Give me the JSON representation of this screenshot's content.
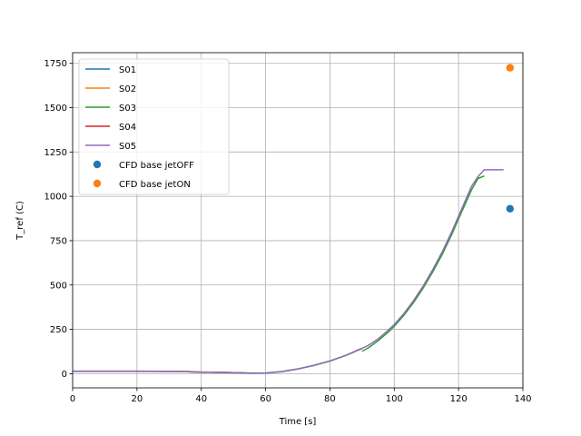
{
  "chart_data": {
    "type": "line",
    "title": "",
    "xlabel": "Time [s]",
    "ylabel": "T_ref (C)",
    "xlim": [
      0,
      140
    ],
    "ylim": [
      -80,
      1810
    ],
    "xticks": [
      0,
      20,
      40,
      60,
      80,
      100,
      120,
      140
    ],
    "yticks": [
      0,
      250,
      500,
      750,
      1000,
      1250,
      1500,
      1750
    ],
    "grid": true,
    "legend_position": "top-left",
    "series": [
      {
        "name": "S01",
        "color": "#1f77b4",
        "segments": [
          [
            [
              0,
              13
            ],
            [
              10,
              13
            ],
            [
              20,
              13
            ],
            [
              30,
              12
            ],
            [
              36,
              12
            ]
          ]
        ]
      },
      {
        "name": "S02",
        "color": "#ff7f0e",
        "segments": [
          [
            [
              0,
              14
            ],
            [
              10,
              14
            ],
            [
              20,
              14
            ],
            [
              30,
              13
            ],
            [
              36,
              13
            ]
          ]
        ]
      },
      {
        "name": "S03",
        "color": "#2ca02c",
        "segments": [
          [
            [
              36,
              10
            ],
            [
              40,
              8
            ],
            [
              45,
              7
            ],
            [
              50,
              5
            ],
            [
              53,
              4
            ]
          ],
          [
            [
              53,
              4
            ],
            [
              56,
              2
            ],
            [
              60,
              3
            ],
            [
              65,
              11
            ],
            [
              70,
              26
            ],
            [
              75,
              46
            ],
            [
              80,
              71
            ],
            [
              85,
              103
            ],
            [
              89.5,
              138
            ]
          ],
          [
            [
              90,
              126
            ],
            [
              92,
              146
            ],
            [
              95,
              186
            ],
            [
              98,
              232
            ],
            [
              100,
              267
            ],
            [
              103,
              329
            ],
            [
              106,
              401
            ],
            [
              109,
              483
            ],
            [
              112,
              575
            ],
            [
              115,
              675
            ],
            [
              118,
              790
            ],
            [
              121,
              914
            ],
            [
              124,
              1035
            ],
            [
              126,
              1100
            ],
            [
              128,
              1115
            ]
          ]
        ]
      },
      {
        "name": "S04",
        "color": "#d62728",
        "segments": [
          [
            [
              36,
              11
            ],
            [
              40,
              9
            ],
            [
              45,
              8
            ],
            [
              50,
              6
            ],
            [
              53,
              5
            ]
          ],
          [
            [
              89,
              136
            ],
            [
              90,
              141
            ]
          ]
        ]
      },
      {
        "name": "S05",
        "color": "#9467bd",
        "segments": [
          [
            [
              0,
              14
            ],
            [
              10,
              14
            ],
            [
              20,
              14
            ],
            [
              30,
              13
            ],
            [
              36,
              12
            ],
            [
              40,
              9
            ],
            [
              45,
              8
            ],
            [
              50,
              6
            ],
            [
              53,
              5
            ],
            [
              56,
              3
            ],
            [
              60,
              4
            ],
            [
              65,
              12
            ],
            [
              70,
              27
            ],
            [
              75,
              47
            ],
            [
              80,
              72
            ],
            [
              85,
              104
            ],
            [
              89,
              136
            ],
            [
              90,
              143
            ],
            [
              92,
              160
            ],
            [
              95,
              196
            ],
            [
              98,
              243
            ],
            [
              100,
              277
            ],
            [
              103,
              339
            ],
            [
              106,
              412
            ],
            [
              109,
              494
            ],
            [
              112,
              588
            ],
            [
              115,
              690
            ],
            [
              118,
              805
            ],
            [
              121,
              930
            ],
            [
              124,
              1055
            ],
            [
              126,
              1110
            ],
            [
              128,
              1150
            ],
            [
              134,
              1150
            ]
          ]
        ]
      }
    ],
    "scatter": [
      {
        "name": "CFD base jetOFF",
        "color": "#1f77b4",
        "points": [
          [
            136,
            930
          ]
        ]
      },
      {
        "name": "CFD base jetON",
        "color": "#ff7f0e",
        "points": [
          [
            136,
            1725
          ]
        ]
      }
    ]
  }
}
